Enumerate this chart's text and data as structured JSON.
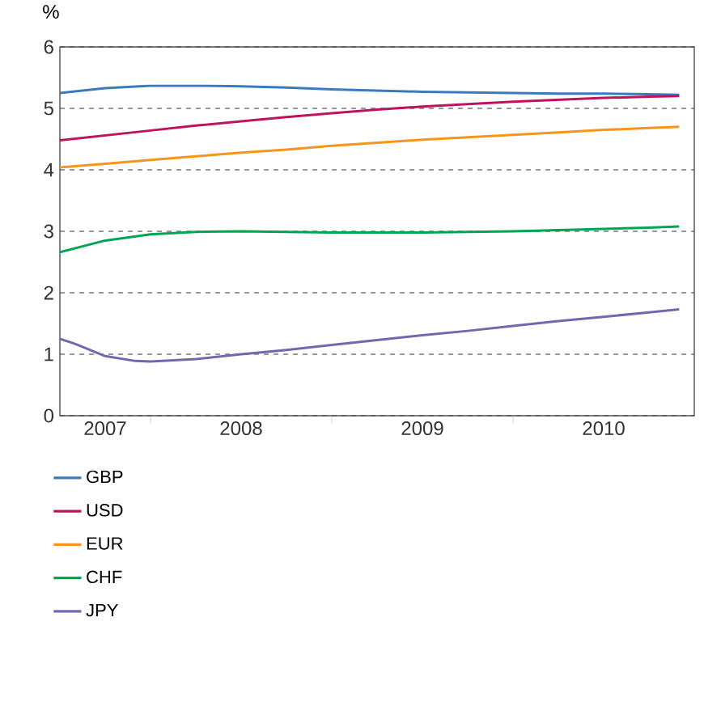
{
  "chart_data": {
    "type": "line",
    "ylabel": "%",
    "x": [
      "2007-07",
      "2007-10",
      "2008-01",
      "2008-04",
      "2008-07",
      "2008-10",
      "2009-01",
      "2009-04",
      "2009-07",
      "2009-10",
      "2010-01",
      "2010-04",
      "2010-07",
      "2010-10",
      "2010-12"
    ],
    "series": [
      {
        "name": "GBP",
        "color": "#3a7bbf",
        "values": [
          5.25,
          5.33,
          5.37,
          5.37,
          5.36,
          5.34,
          5.31,
          5.29,
          5.27,
          5.26,
          5.25,
          5.24,
          5.24,
          5.23,
          5.22
        ]
      },
      {
        "name": "USD",
        "color": "#c0135e",
        "values": [
          4.48,
          4.56,
          4.64,
          4.72,
          4.79,
          4.86,
          4.92,
          4.98,
          5.03,
          5.07,
          5.11,
          5.14,
          5.17,
          5.19,
          5.2
        ]
      },
      {
        "name": "EUR",
        "color": "#f7941d",
        "values": [
          4.04,
          4.1,
          4.16,
          4.22,
          4.28,
          4.33,
          4.39,
          4.44,
          4.49,
          4.53,
          4.57,
          4.61,
          4.65,
          4.68,
          4.7
        ]
      },
      {
        "name": "CHF",
        "color": "#00a651",
        "values": [
          2.66,
          2.85,
          2.95,
          2.99,
          3.0,
          2.99,
          2.98,
          2.98,
          2.98,
          2.99,
          3.0,
          3.02,
          3.04,
          3.06,
          3.08
        ]
      },
      {
        "name": "JPY",
        "color": "#7566b0",
        "x": [
          "2007-07",
          "2007-08",
          "2007-10",
          "2007-12",
          "2008-01",
          "2008-04",
          "2008-07",
          "2008-10",
          "2009-01",
          "2009-04",
          "2009-07",
          "2009-10",
          "2010-01",
          "2010-04",
          "2010-07",
          "2010-10",
          "2010-12"
        ],
        "values": [
          1.25,
          1.17,
          0.97,
          0.89,
          0.88,
          0.92,
          1.0,
          1.07,
          1.15,
          1.23,
          1.31,
          1.38,
          1.46,
          1.54,
          1.61,
          1.68,
          1.73
        ]
      }
    ],
    "xlim": [
      "2007-07",
      "2011-01"
    ],
    "xticks": [
      {
        "value": "2007-10",
        "label": "2007"
      },
      {
        "value": "2008-01",
        "label": null
      },
      {
        "value": "2008-07",
        "label": "2008"
      },
      {
        "value": "2009-01",
        "label": null
      },
      {
        "value": "2009-07",
        "label": "2009"
      },
      {
        "value": "2010-01",
        "label": null
      },
      {
        "value": "2010-07",
        "label": "2010"
      }
    ],
    "ylim": [
      0,
      6
    ],
    "yticks": [
      0,
      1,
      2,
      3,
      4,
      5,
      6
    ],
    "grid": "y",
    "legend": "bottom left",
    "line_style": "solid",
    "marker": "none"
  }
}
